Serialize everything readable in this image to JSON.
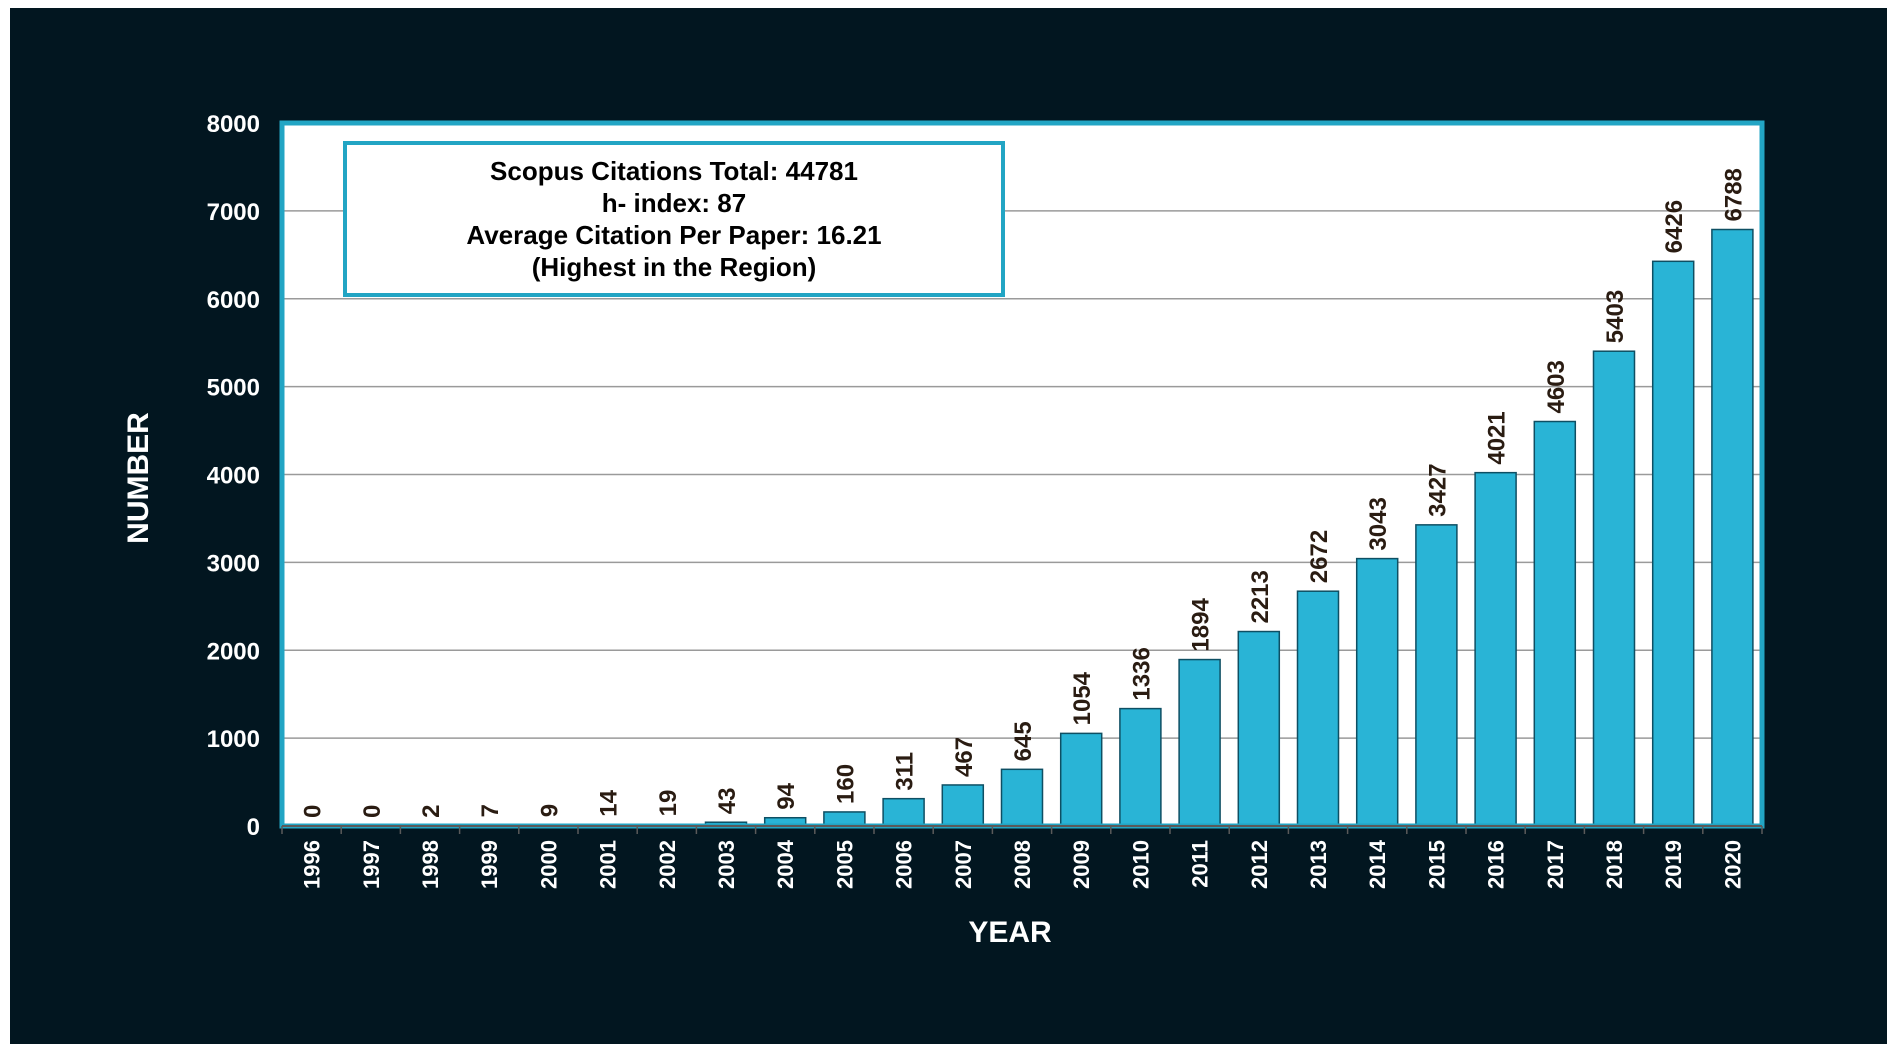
{
  "colors": {
    "background": "#021620",
    "plot_area": "#ffffff",
    "plot_border": "#22a5c4",
    "bar_fill": "#29b4d6",
    "bar_edge": "#0e4f63",
    "gridline": "#9a9a9a",
    "tick_text": "#ffffff",
    "data_label_text": "#2a1c12"
  },
  "info_box": {
    "line1": "Scopus Citations Total: 44781",
    "line2": "h- index: 87",
    "line3": "Average Citation Per Paper: 16.21",
    "line4": "(Highest in the Region)"
  },
  "chart_data": {
    "type": "bar",
    "title": "",
    "xlabel": "YEAR",
    "ylabel": "NUMBER",
    "ylim": [
      0,
      8000
    ],
    "yticks": [
      0,
      1000,
      2000,
      3000,
      4000,
      5000,
      6000,
      7000,
      8000
    ],
    "grid": true,
    "legend": "none",
    "categories": [
      "1996",
      "1997",
      "1998",
      "1999",
      "2000",
      "2001",
      "2002",
      "2003",
      "2004",
      "2005",
      "2006",
      "2007",
      "2008",
      "2009",
      "2010",
      "2011",
      "2012",
      "2013",
      "2014",
      "2015",
      "2016",
      "2017",
      "2018",
      "2019",
      "2020"
    ],
    "values": [
      0,
      0,
      2,
      7,
      9,
      14,
      19,
      43,
      94,
      160,
      311,
      467,
      645,
      1054,
      1336,
      1894,
      2213,
      2672,
      3043,
      3427,
      4021,
      4603,
      5403,
      6426,
      6788
    ]
  }
}
